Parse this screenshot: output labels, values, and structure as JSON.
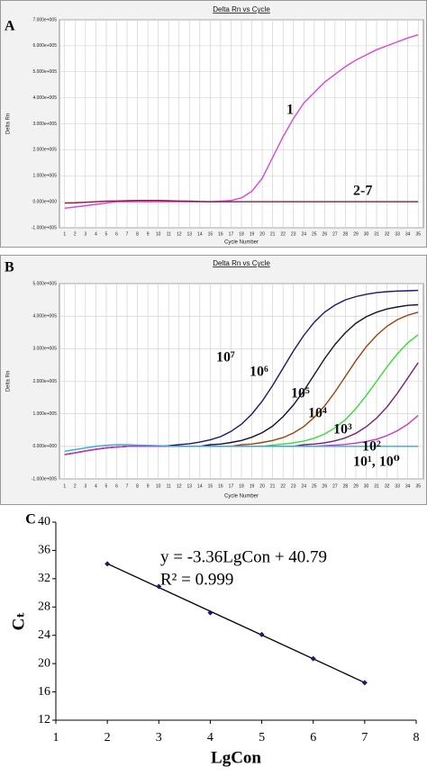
{
  "chart_data": [
    {
      "type": "line",
      "panel_label": "A",
      "title": "Delta Rn vs Cycle",
      "xlabel": "Cycle Number",
      "ylabel": "Delta Rn",
      "x": [
        1,
        2,
        3,
        4,
        5,
        6,
        7,
        8,
        9,
        10,
        11,
        12,
        13,
        14,
        15,
        16,
        17,
        18,
        19,
        20,
        21,
        22,
        23,
        24,
        25,
        26,
        27,
        28,
        29,
        30,
        31,
        32,
        33,
        34,
        35
      ],
      "xlim": [
        0.5,
        35.5
      ],
      "xticks": [
        1,
        2,
        3,
        4,
        5,
        6,
        7,
        8,
        9,
        10,
        11,
        12,
        13,
        14,
        15,
        16,
        17,
        18,
        19,
        20,
        21,
        22,
        23,
        24,
        25,
        26,
        27,
        28,
        29,
        30,
        31,
        32,
        33,
        34,
        35
      ],
      "ylim": [
        -100000,
        700000
      ],
      "yticks": [
        {
          "value": -100000,
          "label": "-1.000e+005"
        },
        {
          "value": 0,
          "label": "0.000e+000"
        },
        {
          "value": 100000,
          "label": "1.000e+005"
        },
        {
          "value": 200000,
          "label": "2.000e+005"
        },
        {
          "value": 300000,
          "label": "3.000e+005"
        },
        {
          "value": 400000,
          "label": "4.000e+005"
        },
        {
          "value": 500000,
          "label": "5.000e+005"
        },
        {
          "value": 600000,
          "label": "6.000e+005"
        },
        {
          "value": 700000,
          "label": "7.000e+005"
        }
      ],
      "grid": true,
      "series": [
        {
          "name": "1",
          "color": "#e040e0",
          "values": [
            -25000,
            -20000,
            -15000,
            -10000,
            -5000,
            0,
            0,
            0,
            0,
            0,
            0,
            0,
            0,
            0,
            0,
            2000,
            5000,
            15000,
            40000,
            90000,
            170000,
            250000,
            320000,
            380000,
            420000,
            460000,
            490000,
            520000,
            545000,
            565000,
            585000,
            600000,
            615000,
            630000,
            642000
          ]
        },
        {
          "name": "2-7",
          "color": "#8b1a3a",
          "values": [
            -5000,
            -4000,
            -2000,
            0,
            2000,
            3000,
            4000,
            5000,
            5000,
            5000,
            4000,
            3000,
            2000,
            1000,
            0,
            0,
            0,
            0,
            0,
            0,
            0,
            0,
            0,
            0,
            0,
            0,
            0,
            0,
            0,
            0,
            0,
            0,
            0,
            0,
            0
          ]
        }
      ]
    },
    {
      "type": "line",
      "panel_label": "B",
      "title": "Delta Rn vs Cycle",
      "xlabel": "Cycle Number",
      "ylabel": "Delta Rn",
      "x": [
        1,
        2,
        3,
        4,
        5,
        6,
        7,
        8,
        9,
        10,
        11,
        12,
        13,
        14,
        15,
        16,
        17,
        18,
        19,
        20,
        21,
        22,
        23,
        24,
        25,
        26,
        27,
        28,
        29,
        30,
        31,
        32,
        33,
        34,
        35
      ],
      "xlim": [
        0.5,
        35.5
      ],
      "xticks": [
        1,
        2,
        3,
        4,
        5,
        6,
        7,
        8,
        9,
        10,
        11,
        12,
        13,
        14,
        15,
        16,
        17,
        18,
        19,
        20,
        21,
        22,
        23,
        24,
        25,
        26,
        27,
        28,
        29,
        30,
        31,
        32,
        33,
        34,
        35
      ],
      "ylim": [
        -100000,
        500000
      ],
      "yticks": [
        {
          "value": -100000,
          "label": "-1.000e+005"
        },
        {
          "value": 0,
          "label": "0.000e+000"
        },
        {
          "value": 100000,
          "label": "1.000e+005"
        },
        {
          "value": 200000,
          "label": "2.000e+005"
        },
        {
          "value": 300000,
          "label": "3.000e+005"
        },
        {
          "value": 400000,
          "label": "4.000e+005"
        },
        {
          "value": 500000,
          "label": "5.000e+005"
        }
      ],
      "grid": true,
      "series": [
        {
          "name": "10⁷",
          "color": "#1a1a6e",
          "values": [
            -25000,
            -20000,
            -14000,
            -9000,
            -5000,
            -2000,
            0,
            0,
            0,
            0,
            2000,
            5000,
            8000,
            13000,
            20000,
            30000,
            46000,
            68000,
            99000,
            139000,
            187000,
            240000,
            293000,
            341000,
            381000,
            412000,
            434000,
            450000,
            460000,
            467000,
            472000,
            475000,
            477000,
            478000,
            479000
          ]
        },
        {
          "name": "10⁶",
          "color": "#1c1030",
          "values": [
            -25000,
            -20000,
            -14000,
            -9000,
            -5000,
            -2000,
            0,
            0,
            0,
            0,
            0,
            0,
            0,
            0,
            5000,
            7000,
            12000,
            18000,
            28000,
            42000,
            62000,
            91000,
            127000,
            171000,
            220000,
            269000,
            313000,
            349000,
            378000,
            398000,
            412000,
            422000,
            428000,
            433000,
            435000
          ]
        },
        {
          "name": "10⁵",
          "color": "#a0400a",
          "values": [
            -25000,
            -20000,
            -14000,
            -9000,
            -5000,
            -2000,
            0,
            0,
            0,
            0,
            0,
            0,
            0,
            0,
            0,
            0,
            0,
            5000,
            7000,
            12000,
            18000,
            27000,
            41000,
            61000,
            89000,
            124000,
            167000,
            215000,
            263000,
            306000,
            341000,
            369000,
            389000,
            403000,
            412000
          ]
        },
        {
          "name": "10⁴",
          "color": "#33dd33",
          "values": [
            -25000,
            -20000,
            -14000,
            -9000,
            -5000,
            -2000,
            0,
            0,
            0,
            0,
            0,
            0,
            0,
            0,
            0,
            0,
            0,
            0,
            0,
            0,
            4000,
            7000,
            11000,
            16000,
            25000,
            38000,
            57000,
            82000,
            116000,
            156000,
            200000,
            244000,
            284000,
            318000,
            343000
          ]
        },
        {
          "name": "10³",
          "color": "#7a1a6e",
          "values": [
            -25000,
            -20000,
            -14000,
            -9000,
            -5000,
            -2000,
            0,
            0,
            0,
            0,
            0,
            0,
            0,
            0,
            0,
            0,
            0,
            0,
            0,
            0,
            0,
            0,
            0,
            5000,
            7000,
            11000,
            17000,
            26000,
            40000,
            60000,
            87000,
            121000,
            163000,
            210000,
            257000
          ]
        },
        {
          "name": "10²",
          "color": "#cc33cc",
          "values": [
            -25000,
            -20000,
            -14000,
            -9000,
            -5000,
            -2000,
            0,
            0,
            0,
            0,
            0,
            0,
            0,
            0,
            0,
            0,
            0,
            0,
            0,
            0,
            0,
            0,
            0,
            0,
            0,
            2000,
            4000,
            6000,
            10000,
            15000,
            22000,
            33000,
            48000,
            68000,
            95000
          ]
        },
        {
          "name": "10¹, 10⁰",
          "color": "#33aadd",
          "values": [
            -15000,
            -10000,
            -5000,
            0,
            3000,
            5000,
            5000,
            4000,
            3000,
            2000,
            1000,
            0,
            0,
            0,
            0,
            0,
            0,
            0,
            0,
            0,
            0,
            0,
            0,
            0,
            0,
            0,
            0,
            0,
            0,
            0,
            0,
            0,
            0,
            0,
            0
          ]
        }
      ]
    },
    {
      "type": "scatter",
      "panel_label": "C",
      "xlabel": "LgCon",
      "ylabel": "Cₜ",
      "x": [
        2,
        3,
        4,
        5,
        6,
        7
      ],
      "values": [
        34.1,
        30.9,
        27.2,
        24.1,
        20.7,
        17.3
      ],
      "color": "#1a1a6e",
      "xlim": [
        1,
        8
      ],
      "xticks": [
        1,
        2,
        3,
        4,
        5,
        6,
        7,
        8
      ],
      "ylim": [
        12,
        40
      ],
      "yticks": [
        12,
        16,
        20,
        24,
        28,
        32,
        36,
        40
      ],
      "annotations": [
        "y = -3.36LgCon + 40.79",
        "R² = 0.999"
      ]
    }
  ]
}
